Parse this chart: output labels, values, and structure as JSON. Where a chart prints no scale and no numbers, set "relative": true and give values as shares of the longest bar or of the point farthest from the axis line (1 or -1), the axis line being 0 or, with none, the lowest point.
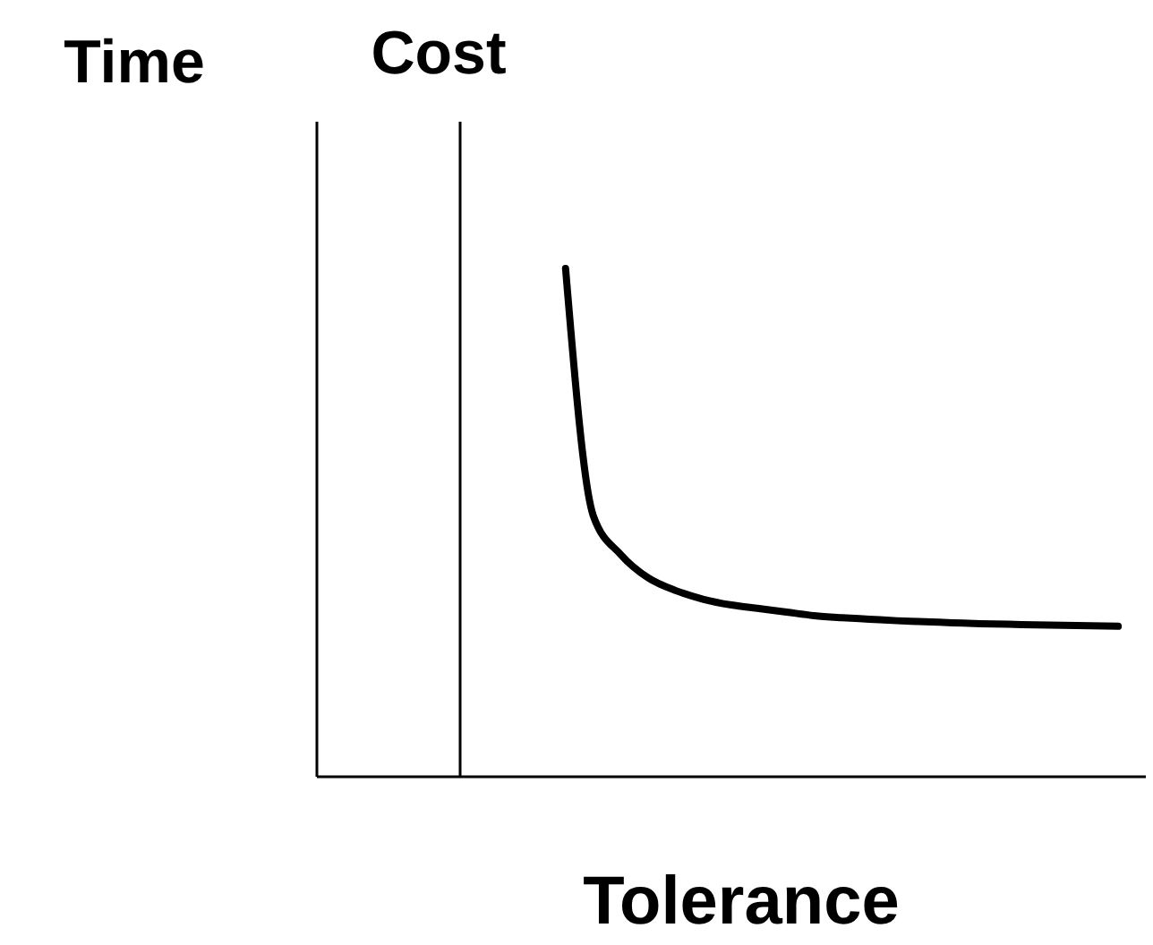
{
  "chart_data": {
    "type": "line",
    "relative": true,
    "ylabel": "Time",
    "y2label": "Cost",
    "xlabel": "Tolerance",
    "marker": "none",
    "line_style": "solid",
    "categories": [
      null,
      null,
      null,
      null,
      null,
      null,
      null,
      null,
      null,
      null,
      null,
      null,
      null,
      null,
      null,
      null,
      null,
      null,
      null,
      null,
      null,
      null,
      null,
      null,
      null,
      null,
      null,
      null,
      null,
      null,
      null
    ],
    "series": [
      {
        "color": "#000000",
        "values": [
          null,
          null,
          null,
          null,
          null,
          null,
          null,
          null,
          null,
          1,
          0.514,
          0.437,
          0.391,
          0.366,
          0.349,
          0.338,
          0.331,
          0.324,
          0.317,
          0.313,
          0.31,
          0.307,
          0.305,
          0.303,
          0.301,
          0.3,
          0.299,
          0.298,
          0.297,
          0.296,
          null
        ]
      }
    ]
  }
}
